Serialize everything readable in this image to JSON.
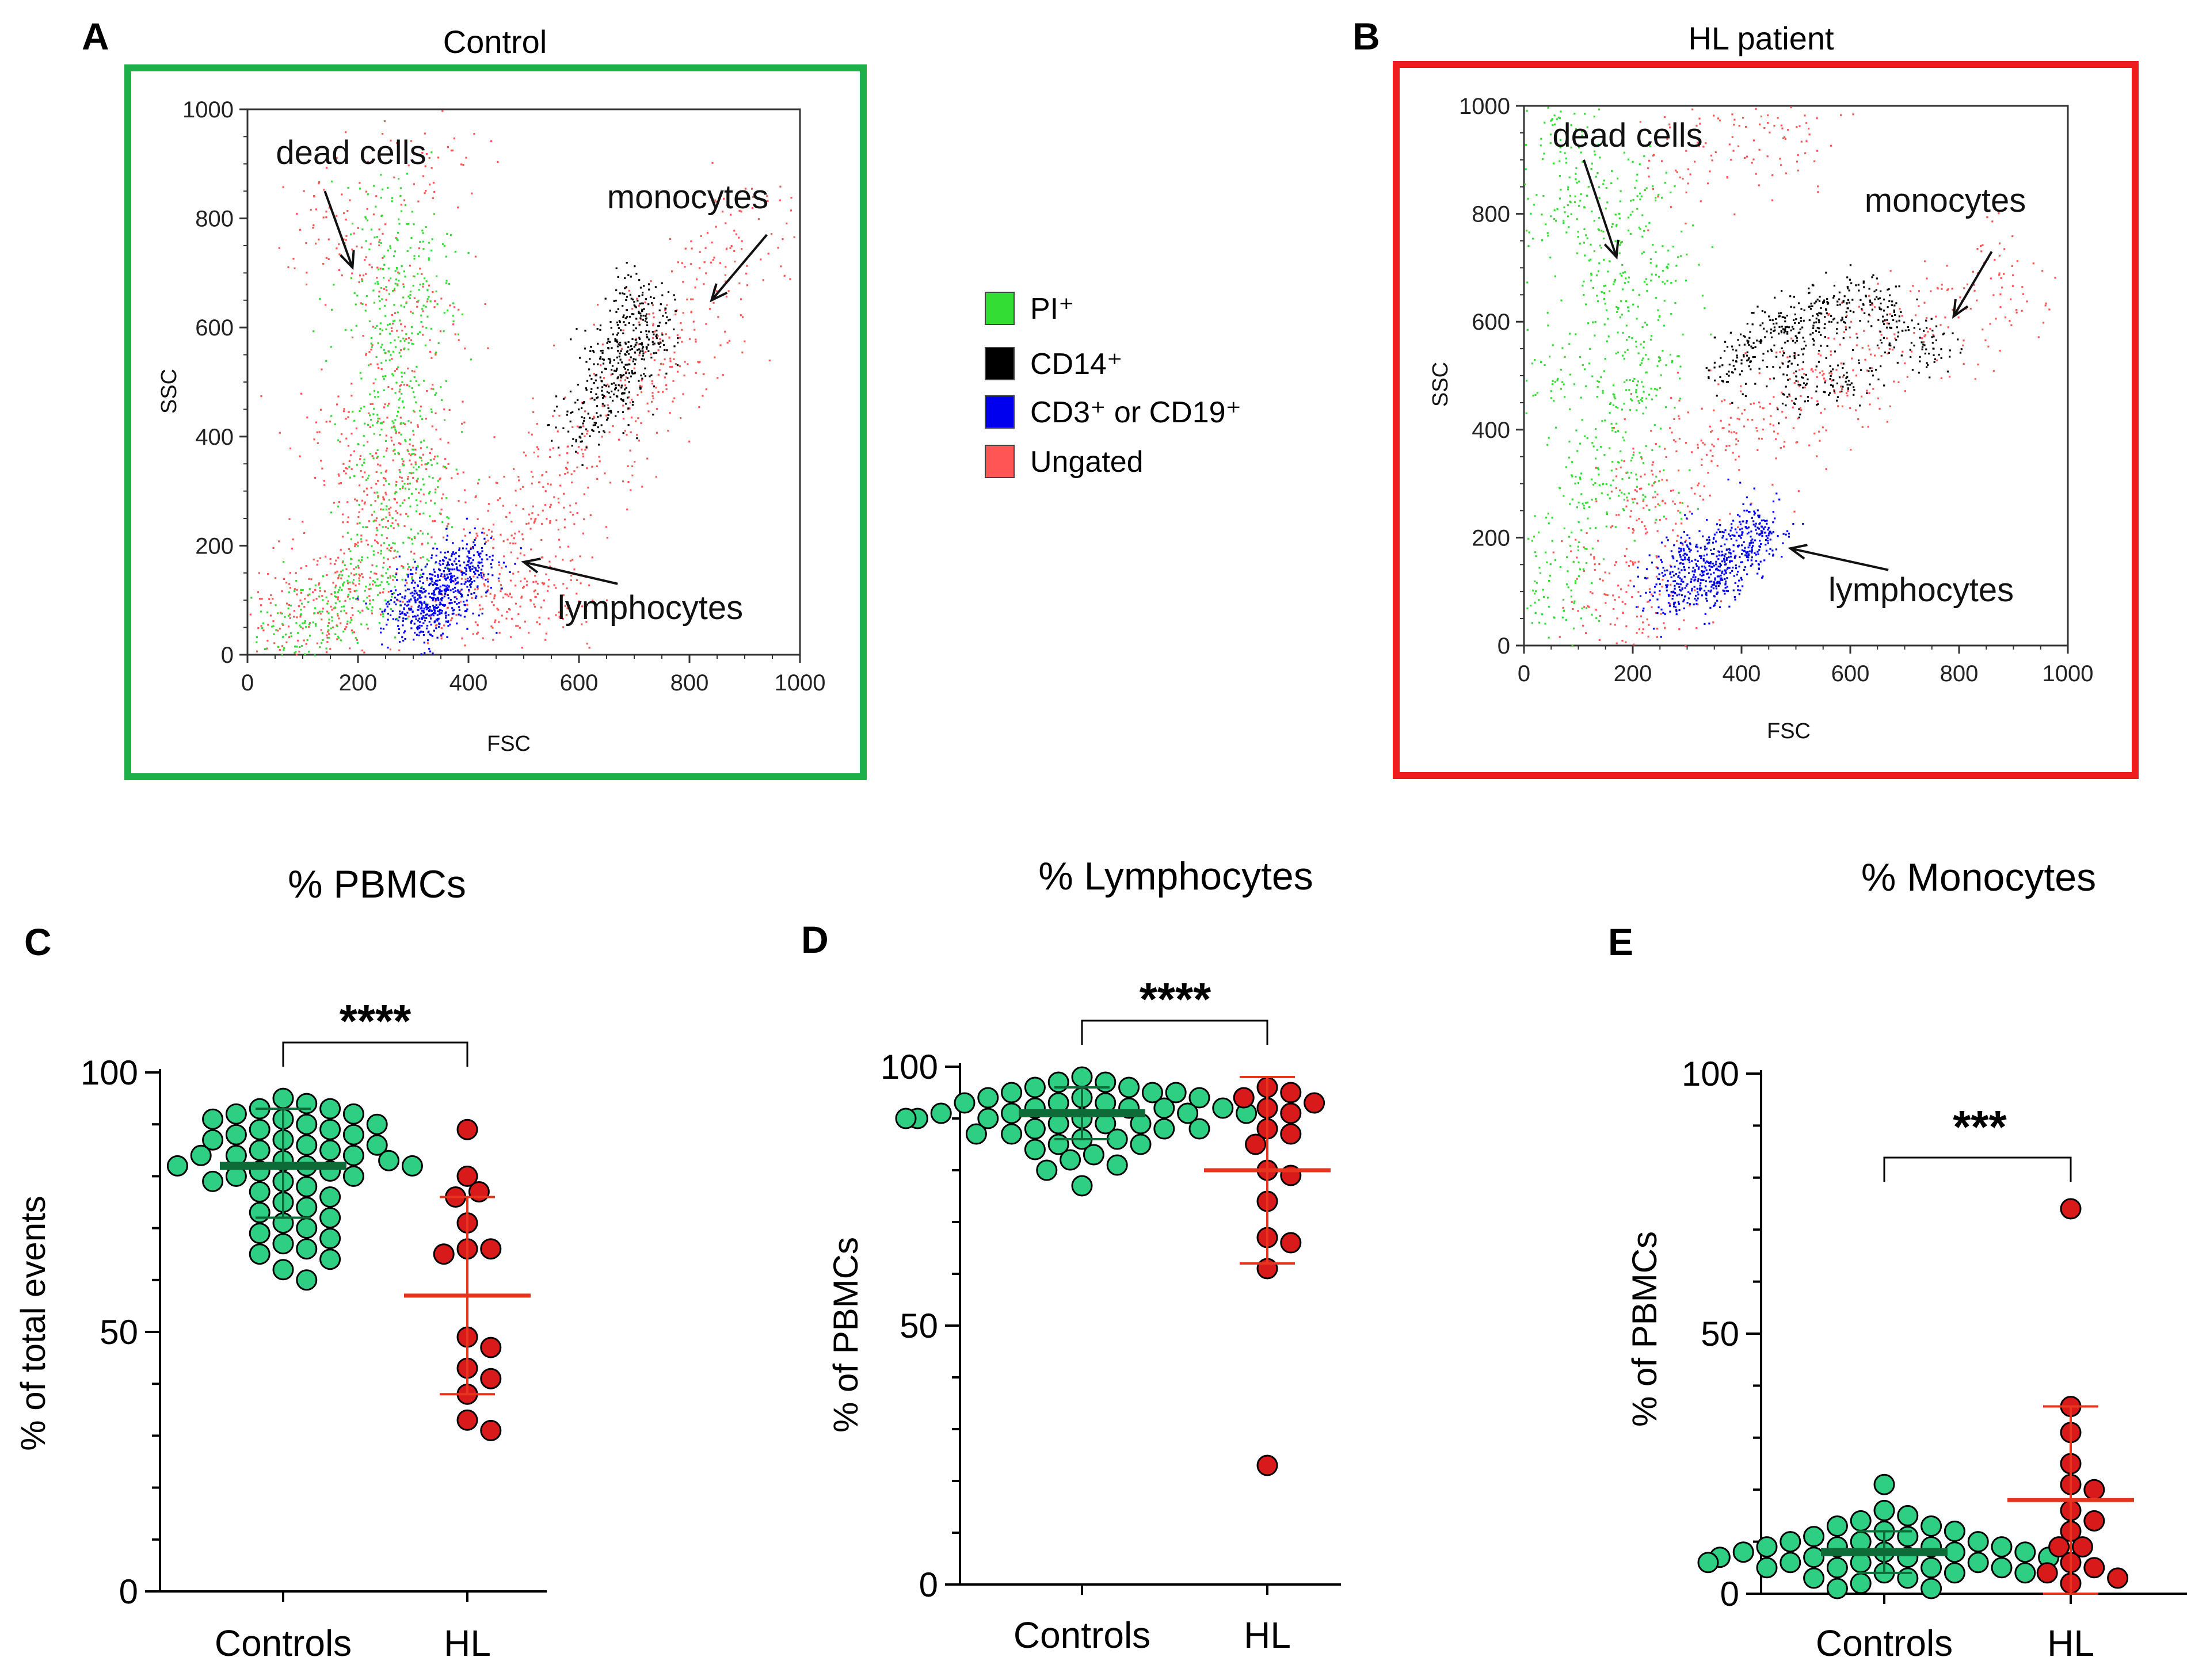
{
  "colors": {
    "pi": "#33dd33",
    "cd14": "#000000",
    "cd3_cd19": "#0000ee",
    "ungated": "#ff5555",
    "control_frame": "#1db04a",
    "hl_frame": "#ee1c1c",
    "controls_fill": "#2ecf83",
    "controls_mean": "#0c6b36",
    "hl_fill": "#d91a1a",
    "hl_mean": "#e8341c"
  },
  "legend": {
    "items": [
      {
        "key": "pi",
        "label": "PI⁺",
        "color": "#33dd33"
      },
      {
        "key": "cd14",
        "label": "CD14⁺",
        "color": "#000000"
      },
      {
        "key": "cd3_cd19",
        "label": "CD3⁺ or CD19⁺",
        "color": "#0000ee"
      },
      {
        "key": "ungated",
        "label": "Ungated",
        "color": "#ff5555"
      }
    ]
  },
  "chart_data": [
    {
      "id": "A",
      "letter": "A",
      "type": "scatter",
      "title": "Control",
      "xlabel": "FSC",
      "ylabel": "SSC",
      "xlim": [
        0,
        1000
      ],
      "ylim": [
        0,
        1000
      ],
      "xticks": [
        0,
        200,
        400,
        600,
        800,
        1000
      ],
      "yticks": [
        0,
        200,
        400,
        600,
        800,
        1000
      ],
      "annotations": [
        {
          "text": "dead cells",
          "arrow_from": [
            140,
            850
          ],
          "arrow_to": [
            190,
            710
          ]
        },
        {
          "text": "monocytes",
          "arrow_from": [
            940,
            770
          ],
          "arrow_to": [
            840,
            650
          ]
        },
        {
          "text": "lymphocytes",
          "arrow_from": [
            670,
            130
          ],
          "arrow_to": [
            500,
            170
          ]
        }
      ],
      "populations": [
        {
          "name": "Ungated",
          "points": [
            [
              40,
              40
            ],
            [
              80,
              60
            ],
            [
              120,
              90
            ],
            [
              160,
              120
            ],
            [
              200,
              160
            ],
            [
              240,
              200
            ],
            [
              260,
              260
            ],
            [
              280,
              320
            ],
            [
              300,
              380
            ],
            [
              220,
              300
            ],
            [
              180,
              420
            ],
            [
              260,
              520
            ],
            [
              300,
              620
            ],
            [
              220,
              700
            ],
            [
              150,
              800
            ],
            [
              320,
              900
            ],
            [
              420,
              160
            ],
            [
              460,
              220
            ],
            [
              500,
              260
            ],
            [
              560,
              320
            ],
            [
              620,
              380
            ],
            [
              680,
              450
            ],
            [
              720,
              520
            ],
            [
              760,
              560
            ],
            [
              800,
              600
            ],
            [
              860,
              700
            ],
            [
              900,
              780
            ],
            [
              520,
              120
            ],
            [
              560,
              90
            ],
            [
              440,
              80
            ],
            [
              340,
              60
            ]
          ]
        },
        {
          "name": "PI+",
          "points": [
            [
              60,
              30
            ],
            [
              100,
              50
            ],
            [
              140,
              80
            ],
            [
              180,
              100
            ],
            [
              220,
              130
            ],
            [
              260,
              180
            ],
            [
              280,
              250
            ],
            [
              300,
              330
            ],
            [
              290,
              420
            ],
            [
              270,
              500
            ],
            [
              280,
              580
            ],
            [
              300,
              660
            ],
            [
              280,
              740
            ],
            [
              260,
              800
            ],
            [
              240,
              640
            ],
            [
              230,
              380
            ]
          ]
        },
        {
          "name": "CD3+ or CD19+",
          "points": [
            [
              280,
              80
            ],
            [
              310,
              100
            ],
            [
              330,
              120
            ],
            [
              350,
              110
            ],
            [
              370,
              140
            ],
            [
              390,
              160
            ],
            [
              410,
              180
            ],
            [
              360,
              90
            ],
            [
              320,
              70
            ]
          ]
        },
        {
          "name": "CD14+",
          "points": [
            [
              600,
              420
            ],
            [
              640,
              470
            ],
            [
              660,
              500
            ],
            [
              690,
              540
            ],
            [
              710,
              580
            ],
            [
              730,
              620
            ],
            [
              700,
              660
            ],
            [
              650,
              560
            ]
          ]
        }
      ]
    },
    {
      "id": "B",
      "letter": "B",
      "type": "scatter",
      "title": "HL patient",
      "xlabel": "FSC",
      "ylabel": "SSC",
      "xlim": [
        0,
        1000
      ],
      "ylim": [
        0,
        1000
      ],
      "xticks": [
        0,
        200,
        400,
        600,
        800,
        1000
      ],
      "yticks": [
        0,
        200,
        400,
        600,
        800,
        1000
      ],
      "annotations": [
        {
          "text": "dead cells",
          "arrow_from": [
            110,
            900
          ],
          "arrow_to": [
            170,
            720
          ]
        },
        {
          "text": "monocytes",
          "arrow_from": [
            860,
            730
          ],
          "arrow_to": [
            790,
            610
          ]
        },
        {
          "text": "lymphocytes",
          "arrow_from": [
            670,
            140
          ],
          "arrow_to": [
            490,
            180
          ]
        }
      ],
      "populations": [
        {
          "name": "PI+",
          "points": [
            [
              30,
              60
            ],
            [
              60,
              150
            ],
            [
              100,
              250
            ],
            [
              130,
              350
            ],
            [
              160,
              450
            ],
            [
              190,
              550
            ],
            [
              170,
              650
            ],
            [
              140,
              750
            ],
            [
              110,
              850
            ],
            [
              80,
              950
            ],
            [
              200,
              850
            ],
            [
              250,
              700
            ],
            [
              230,
              500
            ],
            [
              220,
              300
            ],
            [
              50,
              500
            ],
            [
              40,
              800
            ]
          ]
        },
        {
          "name": "Ungated",
          "points": [
            [
              180,
              150
            ],
            [
              220,
              250
            ],
            [
              260,
              300
            ],
            [
              320,
              380
            ],
            [
              400,
              400
            ],
            [
              480,
              420
            ],
            [
              540,
              480
            ],
            [
              600,
              540
            ],
            [
              700,
              560
            ],
            [
              800,
              620
            ],
            [
              900,
              700
            ],
            [
              300,
              900
            ],
            [
              420,
              950
            ],
            [
              500,
              980
            ],
            [
              160,
              80
            ],
            [
              240,
              60
            ]
          ]
        },
        {
          "name": "CD3+ or CD19+",
          "points": [
            [
              260,
              100
            ],
            [
              300,
              120
            ],
            [
              330,
              140
            ],
            [
              360,
              160
            ],
            [
              390,
              180
            ],
            [
              420,
              200
            ],
            [
              440,
              220
            ],
            [
              300,
              180
            ],
            [
              350,
              110
            ]
          ]
        },
        {
          "name": "CD14+",
          "points": [
            [
              380,
              520
            ],
            [
              430,
              560
            ],
            [
              480,
              580
            ],
            [
              520,
              600
            ],
            [
              560,
              620
            ],
            [
              620,
              640
            ],
            [
              680,
              600
            ],
            [
              740,
              560
            ],
            [
              600,
              500
            ],
            [
              500,
              480
            ]
          ]
        }
      ]
    },
    {
      "id": "C",
      "letter": "C",
      "type": "scatter",
      "title": "% PBMCs",
      "ylabel": "% of total events",
      "categories": [
        "Controls",
        "HL"
      ],
      "ylim": [
        0,
        100
      ],
      "yticks": [
        0,
        50,
        100
      ],
      "significance": "****",
      "series": [
        {
          "name": "Controls",
          "mean": 82,
          "sd_low": 72,
          "sd_high": 93,
          "values": [
            95,
            94,
            93,
            93,
            92,
            92,
            91,
            91,
            90,
            90,
            89,
            89,
            88,
            88,
            87,
            87,
            86,
            86,
            85,
            85,
            84,
            84,
            84,
            83,
            83,
            82,
            82,
            82,
            81,
            81,
            80,
            80,
            79,
            79,
            78,
            77,
            76,
            75,
            74,
            73,
            72,
            71,
            70,
            69,
            68,
            67,
            66,
            65,
            64,
            62,
            60
          ]
        },
        {
          "name": "HL",
          "mean": 57,
          "sd_low": 38,
          "sd_high": 76,
          "values": [
            89,
            80,
            77,
            76,
            71,
            66,
            66,
            65,
            49,
            47,
            43,
            41,
            38,
            33,
            31
          ]
        }
      ]
    },
    {
      "id": "D",
      "letter": "D",
      "type": "scatter",
      "title": "% Lymphocytes",
      "ylabel": "% of PBMCs",
      "categories": [
        "Controls",
        "HL"
      ],
      "ylim": [
        0,
        100
      ],
      "yticks": [
        0,
        50,
        100
      ],
      "significance": "****",
      "series": [
        {
          "name": "Controls",
          "mean": 91,
          "sd_low": 86,
          "sd_high": 96,
          "values": [
            98,
            97,
            97,
            96,
            96,
            95,
            95,
            95,
            94,
            94,
            94,
            93,
            93,
            93,
            92,
            92,
            92,
            92,
            91,
            91,
            91,
            91,
            90,
            90,
            90,
            90,
            89,
            89,
            89,
            88,
            88,
            88,
            87,
            87,
            86,
            86,
            85,
            85,
            84,
            83,
            82,
            81,
            80,
            77
          ]
        },
        {
          "name": "HL",
          "mean": 80,
          "sd_low": 62,
          "sd_high": 98,
          "values": [
            96,
            95,
            94,
            93,
            92,
            91,
            88,
            87,
            85,
            80,
            79,
            74,
            67,
            66,
            61,
            23
          ]
        }
      ]
    },
    {
      "id": "E",
      "letter": "E",
      "type": "scatter",
      "title": "% Monocytes",
      "ylabel": "% of PBMCs",
      "categories": [
        "Controls",
        "HL"
      ],
      "ylim": [
        0,
        100
      ],
      "yticks": [
        0,
        50,
        100
      ],
      "significance": "***",
      "series": [
        {
          "name": "Controls",
          "mean": 8,
          "sd_low": 4,
          "sd_high": 12,
          "values": [
            21,
            16,
            15,
            14,
            13,
            13,
            12,
            12,
            11,
            11,
            10,
            10,
            10,
            9,
            9,
            9,
            9,
            8,
            8,
            8,
            8,
            7,
            7,
            7,
            7,
            6,
            6,
            6,
            6,
            5,
            5,
            5,
            5,
            4,
            4,
            4,
            3,
            3,
            2,
            1,
            1
          ]
        },
        {
          "name": "HL",
          "mean": 18,
          "sd_low": 0,
          "sd_high": 36,
          "values": [
            74,
            36,
            31,
            25,
            21,
            20,
            16,
            14,
            12,
            9,
            9,
            6,
            5,
            4,
            3,
            2
          ]
        }
      ]
    }
  ]
}
